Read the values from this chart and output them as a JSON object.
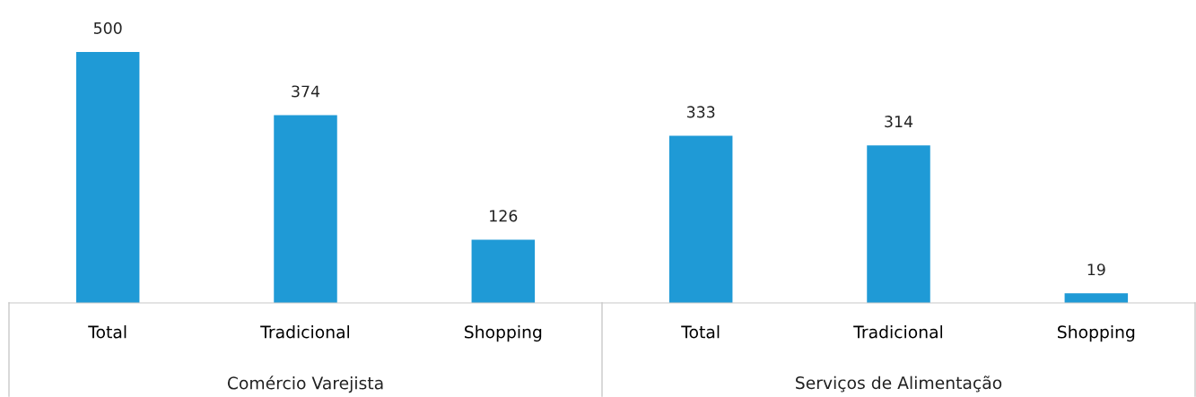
{
  "chart_data": {
    "type": "bar",
    "categories": [
      "Total",
      "Tradicional",
      "Shopping",
      "Total",
      "Tradicional",
      "Shopping"
    ],
    "values": [
      500,
      374,
      126,
      333,
      314,
      19
    ],
    "color": "#1f9ad6",
    "data_labels": true,
    "grid": false,
    "legend": false,
    "annotations": [
      "Comércio Varejista",
      "Serviços de Alimentação"
    ]
  }
}
